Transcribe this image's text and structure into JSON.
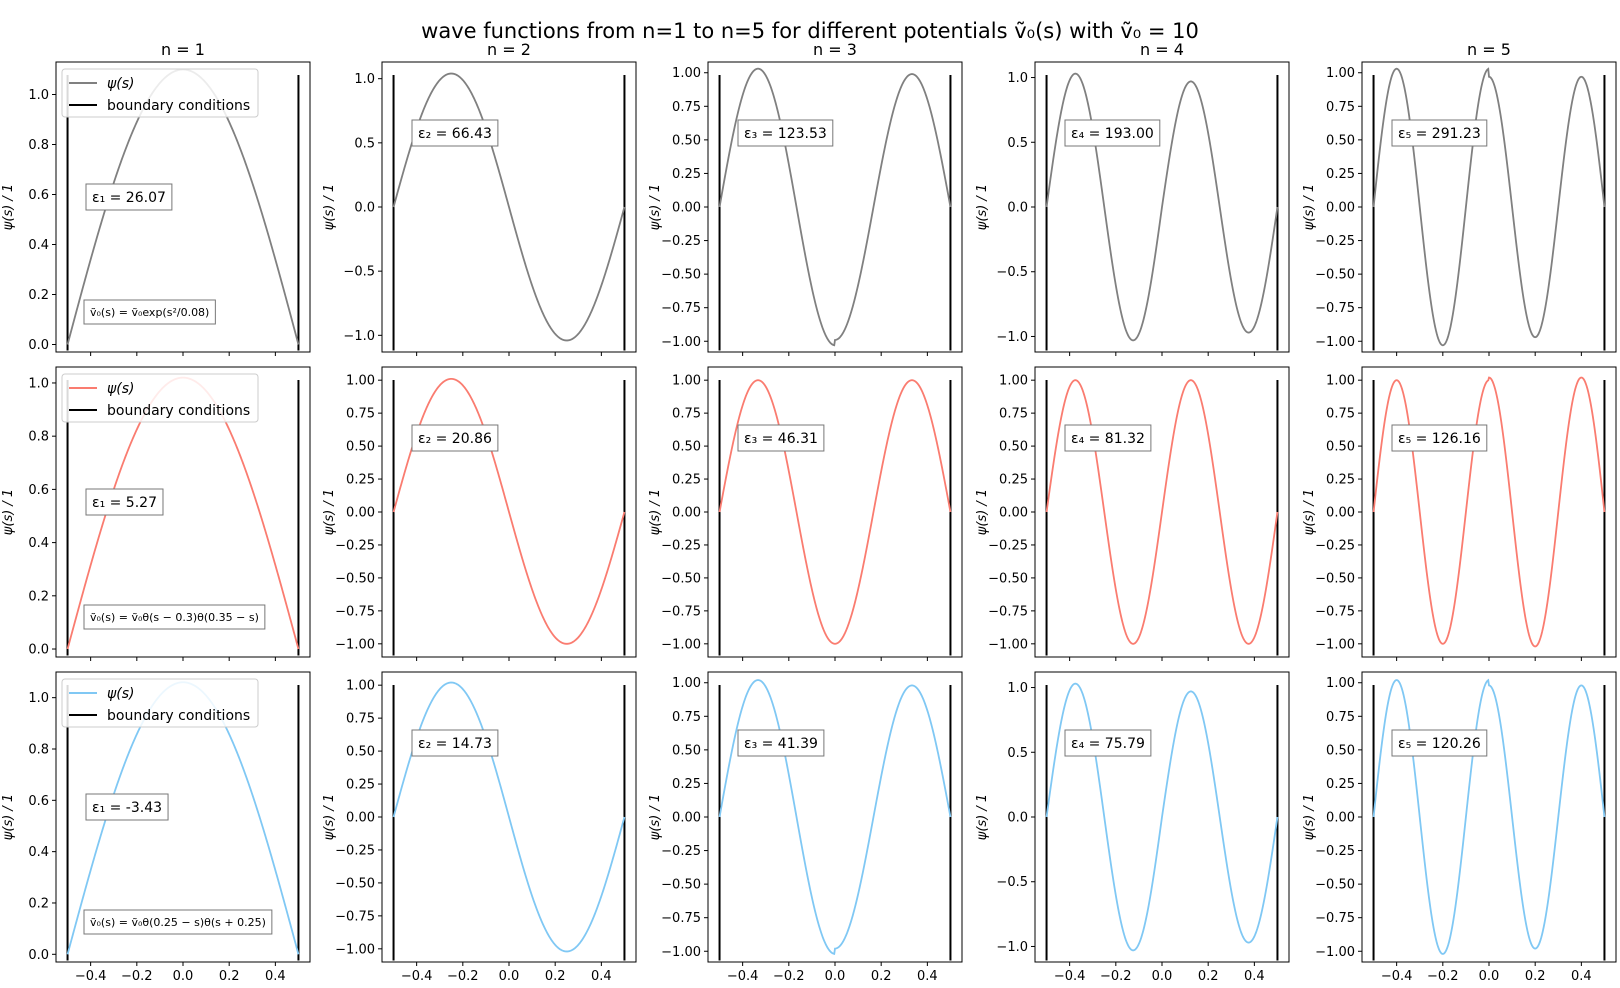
{
  "figure": {
    "title": "wave functions from n=1 to n=5 for different potentials ṽ₀(s) with ṽ₀ = 10",
    "columns": [
      "n = 1",
      "n = 2",
      "n = 3",
      "n = 4",
      "n = 5"
    ]
  },
  "legend": {
    "psi_label": "ψ(s)",
    "boundary_label": "boundary conditions"
  },
  "chart_data": {
    "type": "line",
    "x_range": [
      -0.5,
      0.5
    ],
    "xticks": [
      "−0.4",
      "−0.2",
      "0.0",
      "0.2",
      "0.4"
    ],
    "ylabel": "ψ(s) / 1",
    "boundaries": [
      -0.5,
      0.5
    ],
    "rows": [
      {
        "color": "#808080",
        "potential": "ṽ₀(s) = ṽ₀exp(s²/0.08)",
        "panels": [
          {
            "n": 1,
            "energy": "ε₁ = 26.07",
            "ylim": [
              -0.03,
              1.13
            ],
            "yticks": [
              0,
              0.2,
              0.4,
              0.6,
              0.8,
              1.0
            ],
            "ytick_labels": [
              "0.0",
              "0.2",
              "0.4",
              "0.6",
              "0.8",
              "1.0"
            ],
            "amp": [
              1.1,
              1.1
            ]
          },
          {
            "n": 2,
            "energy": "ε₂ = 66.43",
            "ylim": [
              -1.13,
              1.13
            ],
            "yticks": [
              -1,
              -0.5,
              0,
              0.5,
              1
            ],
            "ytick_labels": [
              "−1.0",
              "−0.5",
              "0.0",
              "0.5",
              "1.0"
            ],
            "amp": [
              1.04,
              1.04
            ]
          },
          {
            "n": 3,
            "energy": "ε₃ = 123.53",
            "ylim": [
              -1.08,
              1.08
            ],
            "yticks": [
              -1,
              -0.75,
              -0.5,
              -0.25,
              0,
              0.25,
              0.5,
              0.75,
              1
            ],
            "ytick_labels": [
              "−1.00",
              "−0.75",
              "−0.50",
              "−0.25",
              "0.00",
              "0.25",
              "0.50",
              "0.75",
              "1.00"
            ],
            "amp": [
              1.03,
              0.99
            ]
          },
          {
            "n": 4,
            "energy": "ε₄ = 193.00",
            "ylim": [
              -1.12,
              1.12
            ],
            "yticks": [
              -1,
              -0.5,
              0,
              0.5,
              1
            ],
            "ytick_labels": [
              "−1.0",
              "−0.5",
              "0.0",
              "0.5",
              "1.0"
            ],
            "amp": [
              1.03,
              0.97
            ]
          },
          {
            "n": 5,
            "energy": "ε₅ = 291.23",
            "ylim": [
              -1.08,
              1.08
            ],
            "yticks": [
              -1,
              -0.75,
              -0.5,
              -0.25,
              0,
              0.25,
              0.5,
              0.75,
              1
            ],
            "ytick_labels": [
              "−1.00",
              "−0.75",
              "−0.50",
              "−0.25",
              "0.00",
              "0.25",
              "0.50",
              "0.75",
              "1.00"
            ],
            "amp": [
              1.03,
              0.97
            ]
          }
        ]
      },
      {
        "color": "#fa7c70",
        "potential": "ṽ₀(s) = ṽ₀θ(s − 0.3)θ(0.35 − s)",
        "panels": [
          {
            "n": 1,
            "energy": "ε₁ = 5.27",
            "ylim": [
              -0.03,
              1.06
            ],
            "yticks": [
              0,
              0.2,
              0.4,
              0.6,
              0.8,
              1.0
            ],
            "ytick_labels": [
              "0.0",
              "0.2",
              "0.4",
              "0.6",
              "0.8",
              "1.0"
            ],
            "amp": [
              1.02,
              1.02
            ]
          },
          {
            "n": 2,
            "energy": "ε₂ = 20.86",
            "ylim": [
              -1.1,
              1.1
            ],
            "yticks": [
              -1,
              -0.75,
              -0.5,
              -0.25,
              0,
              0.25,
              0.5,
              0.75,
              1
            ],
            "ytick_labels": [
              "−1.00",
              "−0.75",
              "−0.50",
              "−0.25",
              "0.00",
              "0.25",
              "0.50",
              "0.75",
              "1.00"
            ],
            "amp": [
              1.01,
              1.0
            ]
          },
          {
            "n": 3,
            "energy": "ε₃ = 46.31",
            "ylim": [
              -1.1,
              1.1
            ],
            "yticks": [
              -1,
              -0.75,
              -0.5,
              -0.25,
              0,
              0.25,
              0.5,
              0.75,
              1
            ],
            "ytick_labels": [
              "−1.00",
              "−0.75",
              "−0.50",
              "−0.25",
              "0.00",
              "0.25",
              "0.50",
              "0.75",
              "1.00"
            ],
            "amp": [
              1.0,
              1.0
            ]
          },
          {
            "n": 4,
            "energy": "ε₄ = 81.32",
            "ylim": [
              -1.1,
              1.1
            ],
            "yticks": [
              -1,
              -0.75,
              -0.5,
              -0.25,
              0,
              0.25,
              0.5,
              0.75,
              1
            ],
            "ytick_labels": [
              "−1.00",
              "−0.75",
              "−0.50",
              "−0.25",
              "0.00",
              "0.25",
              "0.50",
              "0.75",
              "1.00"
            ],
            "amp": [
              1.0,
              1.0
            ]
          },
          {
            "n": 5,
            "energy": "ε₅ = 126.16",
            "ylim": [
              -1.1,
              1.1
            ],
            "yticks": [
              -1,
              -0.75,
              -0.5,
              -0.25,
              0,
              0.25,
              0.5,
              0.75,
              1
            ],
            "ytick_labels": [
              "−1.00",
              "−0.75",
              "−0.50",
              "−0.25",
              "0.00",
              "0.25",
              "0.50",
              "0.75",
              "1.00"
            ],
            "amp": [
              1.0,
              1.02
            ]
          }
        ]
      },
      {
        "color": "#80c8f4",
        "potential": "ṽ₀(s) = ṽ₀θ(0.25 − s)θ(s + 0.25)",
        "panels": [
          {
            "n": 1,
            "energy": "ε₁ = -3.43",
            "ylim": [
              -0.03,
              1.1
            ],
            "yticks": [
              0,
              0.2,
              0.4,
              0.6,
              0.8,
              1.0
            ],
            "ytick_labels": [
              "0.0",
              "0.2",
              "0.4",
              "0.6",
              "0.8",
              "1.0"
            ],
            "amp": [
              1.06,
              1.06
            ]
          },
          {
            "n": 2,
            "energy": "ε₂ = 14.73",
            "ylim": [
              -1.1,
              1.1
            ],
            "yticks": [
              -1,
              -0.75,
              -0.5,
              -0.25,
              0,
              0.25,
              0.5,
              0.75,
              1
            ],
            "ytick_labels": [
              "−1.00",
              "−0.75",
              "−0.50",
              "−0.25",
              "0.00",
              "0.25",
              "0.50",
              "0.75",
              "1.00"
            ],
            "amp": [
              1.02,
              1.02
            ]
          },
          {
            "n": 3,
            "energy": "ε₃ = 41.39",
            "ylim": [
              -1.08,
              1.08
            ],
            "yticks": [
              -1,
              -0.75,
              -0.5,
              -0.25,
              0,
              0.25,
              0.5,
              0.75,
              1
            ],
            "ytick_labels": [
              "−1.00",
              "−0.75",
              "−0.50",
              "−0.25",
              "0.00",
              "0.25",
              "0.50",
              "0.75",
              "1.00"
            ],
            "amp": [
              1.02,
              0.98
            ]
          },
          {
            "n": 4,
            "energy": "ε₄ = 75.79",
            "ylim": [
              -1.12,
              1.12
            ],
            "yticks": [
              -1,
              -0.5,
              0,
              0.5,
              1
            ],
            "ytick_labels": [
              "−1.0",
              "−0.5",
              "0.0",
              "0.5",
              "1.0"
            ],
            "amp": [
              1.03,
              0.97
            ]
          },
          {
            "n": 5,
            "energy": "ε₅ = 120.26",
            "ylim": [
              -1.08,
              1.08
            ],
            "yticks": [
              -1,
              -0.75,
              -0.5,
              -0.25,
              0,
              0.25,
              0.5,
              0.75,
              1
            ],
            "ytick_labels": [
              "−1.00",
              "−0.75",
              "−0.50",
              "−0.25",
              "0.00",
              "0.25",
              "0.50",
              "0.75",
              "1.00"
            ],
            "amp": [
              1.02,
              0.98
            ]
          }
        ]
      }
    ]
  }
}
